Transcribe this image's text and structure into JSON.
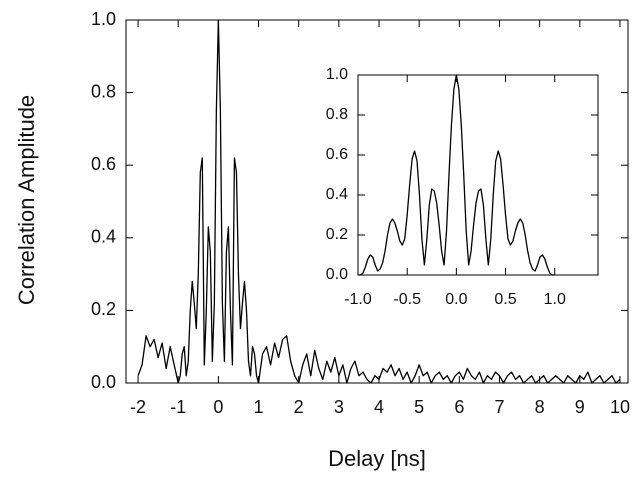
{
  "chart_data": [
    {
      "type": "line",
      "x_label": "Delay [ns]",
      "y_label": "Correlation Amplitude",
      "color": "#000000",
      "xlim": [
        -2.3,
        10.2
      ],
      "ylim": [
        0,
        1
      ],
      "xticks": [
        -2,
        -1,
        0,
        1,
        2,
        3,
        4,
        5,
        6,
        7,
        8,
        9,
        10
      ],
      "yticks": [
        {
          "value": 0,
          "label": "0.0"
        },
        0.2,
        0.4,
        0.6,
        0.8,
        {
          "value": 1,
          "label": "1.0"
        }
      ],
      "x": [
        -2.0,
        -1.9,
        -1.8,
        -1.7,
        -1.6,
        -1.5,
        -1.4,
        -1.3,
        -1.2,
        -1.1,
        -1.0,
        -0.95,
        -0.9,
        -0.85,
        -0.8,
        -0.75,
        -0.7,
        -0.65,
        -0.6,
        -0.55,
        -0.5,
        -0.45,
        -0.4,
        -0.35,
        -0.3,
        -0.25,
        -0.2,
        -0.15,
        -0.1,
        -0.05,
        0,
        0.05,
        0.1,
        0.15,
        0.2,
        0.25,
        0.3,
        0.35,
        0.4,
        0.45,
        0.5,
        0.55,
        0.6,
        0.65,
        0.7,
        0.75,
        0.8,
        0.85,
        0.9,
        0.95,
        1.0,
        1.1,
        1.2,
        1.3,
        1.4,
        1.5,
        1.6,
        1.7,
        1.8,
        1.9,
        2.0,
        2.1,
        2.2,
        2.3,
        2.4,
        2.5,
        2.6,
        2.7,
        2.8,
        2.9,
        3.0,
        3.1,
        3.2,
        3.3,
        3.4,
        3.5,
        3.6,
        3.7,
        3.8,
        3.9,
        4.0,
        4.1,
        4.2,
        4.3,
        4.4,
        4.5,
        4.6,
        4.7,
        4.8,
        4.9,
        5.0,
        5.1,
        5.2,
        5.3,
        5.4,
        5.5,
        5.6,
        5.7,
        5.8,
        5.9,
        6.0,
        6.1,
        6.2,
        6.3,
        6.4,
        6.5,
        6.6,
        6.7,
        6.8,
        6.9,
        7.0,
        7.1,
        7.2,
        7.3,
        7.4,
        7.5,
        7.6,
        7.7,
        7.8,
        7.9,
        8.0,
        8.1,
        8.2,
        8.3,
        8.4,
        8.5,
        8.6,
        8.7,
        8.8,
        8.9,
        9.0,
        9.1,
        9.2,
        9.3,
        9.4,
        9.5,
        9.6,
        9.7,
        9.8,
        9.9,
        10.0
      ],
      "values": [
        0.02,
        0.05,
        0.13,
        0.1,
        0.12,
        0.07,
        0.11,
        0.04,
        0.1,
        0.05,
        0.0,
        0.02,
        0.08,
        0.1,
        0.02,
        0.06,
        0.2,
        0.28,
        0.22,
        0.15,
        0.3,
        0.58,
        0.62,
        0.05,
        0.2,
        0.43,
        0.36,
        0.06,
        0.22,
        0.75,
        1.0,
        0.75,
        0.22,
        0.06,
        0.36,
        0.43,
        0.2,
        0.05,
        0.62,
        0.58,
        0.3,
        0.15,
        0.22,
        0.28,
        0.2,
        0.06,
        0.02,
        0.1,
        0.08,
        0.02,
        0.0,
        0.08,
        0.1,
        0.05,
        0.11,
        0.07,
        0.12,
        0.13,
        0.06,
        0.02,
        0.0,
        0.05,
        0.08,
        0.02,
        0.09,
        0.04,
        0.01,
        0.06,
        0.03,
        0.07,
        0.02,
        0.05,
        0.0,
        0.04,
        0.06,
        0.02,
        0.03,
        0.01,
        0.0,
        0.02,
        0.01,
        0.04,
        0.03,
        0.05,
        0.02,
        0.04,
        0.01,
        0.03,
        0.0,
        0.02,
        0.05,
        0.02,
        0.03,
        0.0,
        0.02,
        0.03,
        0.01,
        0.02,
        0.0,
        0.02,
        0.03,
        0.01,
        0.04,
        0.02,
        0.01,
        0.03,
        0.0,
        0.02,
        0.01,
        0.03,
        0.02,
        0.0,
        0.02,
        0.03,
        0.01,
        0.02,
        0.0,
        0.01,
        0.02,
        0.0,
        0.01,
        0.02,
        0.0,
        0.01,
        0.02,
        0.01,
        0.0,
        0.02,
        0.01,
        0.0,
        0.02,
        0.01,
        0.03,
        0.0,
        0.01,
        0.02,
        0.0,
        0.01,
        0.02,
        0.0,
        0.01
      ]
    },
    {
      "type": "line",
      "color": "#000000",
      "xlim": [
        -1.0,
        1.44
      ],
      "ylim": [
        0,
        1
      ],
      "xticks": [
        {
          "value": -1,
          "label": "-1.0"
        },
        -0.5,
        {
          "value": 0,
          "label": "0.0"
        },
        0.5,
        {
          "value": 1,
          "label": "1.0"
        }
      ],
      "yticks": [
        {
          "value": 0,
          "label": "0.0"
        },
        0.2,
        0.4,
        0.6,
        0.8,
        {
          "value": 1,
          "label": "1.0"
        }
      ],
      "x": [
        -1.0,
        -0.975,
        -0.95,
        -0.925,
        -0.9,
        -0.875,
        -0.85,
        -0.825,
        -0.8,
        -0.775,
        -0.75,
        -0.725,
        -0.7,
        -0.675,
        -0.65,
        -0.625,
        -0.6,
        -0.575,
        -0.55,
        -0.525,
        -0.5,
        -0.475,
        -0.45,
        -0.425,
        -0.4,
        -0.375,
        -0.35,
        -0.325,
        -0.3,
        -0.275,
        -0.25,
        -0.225,
        -0.2,
        -0.175,
        -0.15,
        -0.125,
        -0.1,
        -0.075,
        -0.05,
        -0.025,
        0,
        0.025,
        0.05,
        0.075,
        0.1,
        0.125,
        0.15,
        0.175,
        0.2,
        0.225,
        0.25,
        0.275,
        0.3,
        0.325,
        0.35,
        0.375,
        0.4,
        0.425,
        0.45,
        0.475,
        0.5,
        0.525,
        0.55,
        0.575,
        0.6,
        0.625,
        0.65,
        0.675,
        0.7,
        0.725,
        0.75,
        0.775,
        0.8,
        0.825,
        0.85,
        0.875,
        0.9,
        0.925,
        0.95,
        0.975,
        1.0
      ],
      "values": [
        0.0,
        0.0,
        0.01,
        0.04,
        0.08,
        0.1,
        0.09,
        0.05,
        0.02,
        0.03,
        0.06,
        0.12,
        0.2,
        0.26,
        0.28,
        0.26,
        0.22,
        0.17,
        0.15,
        0.18,
        0.3,
        0.45,
        0.58,
        0.62,
        0.57,
        0.4,
        0.18,
        0.05,
        0.18,
        0.35,
        0.43,
        0.42,
        0.36,
        0.25,
        0.12,
        0.05,
        0.22,
        0.5,
        0.75,
        0.93,
        1.0,
        0.93,
        0.75,
        0.5,
        0.22,
        0.05,
        0.12,
        0.25,
        0.36,
        0.42,
        0.43,
        0.35,
        0.18,
        0.05,
        0.18,
        0.4,
        0.57,
        0.62,
        0.58,
        0.45,
        0.3,
        0.18,
        0.15,
        0.17,
        0.22,
        0.26,
        0.28,
        0.26,
        0.2,
        0.12,
        0.06,
        0.03,
        0.02,
        0.05,
        0.09,
        0.1,
        0.08,
        0.04,
        0.01,
        0.0,
        0.0
      ]
    }
  ]
}
